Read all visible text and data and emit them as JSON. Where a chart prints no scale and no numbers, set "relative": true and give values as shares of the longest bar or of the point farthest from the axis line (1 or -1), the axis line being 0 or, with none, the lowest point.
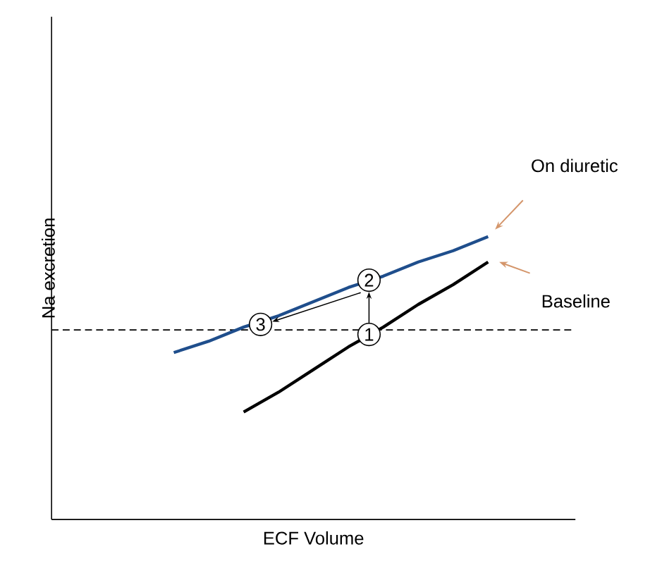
{
  "chart_data": {
    "type": "line",
    "relative": true,
    "xlabel": "ECF Volume",
    "ylabel": "Na excretion",
    "marker": "none",
    "categories": [
      null,
      null,
      null,
      null,
      null,
      null,
      null,
      null,
      null,
      null,
      null,
      null,
      null,
      null,
      null
    ],
    "series": [
      {
        "name": "On diuretic",
        "color": "#1f4e8c",
        "values": [
          null,
          null,
          null,
          0.59,
          0.63,
          0.68,
          0.72,
          0.77,
          0.82,
          0.86,
          0.91,
          0.95,
          1.0,
          null,
          null
        ]
      },
      {
        "name": "Baseline",
        "color": "#000000",
        "values": [
          null,
          null,
          null,
          null,
          null,
          0.38,
          0.45,
          0.53,
          0.61,
          0.68,
          0.76,
          0.83,
          0.91,
          null,
          null
        ]
      }
    ],
    "ref_lines": [
      {
        "axis": "y",
        "value": 0.67,
        "line_style": "dashed",
        "color": "#000000"
      }
    ],
    "annotations": [
      "1",
      "2",
      "3"
    ]
  }
}
